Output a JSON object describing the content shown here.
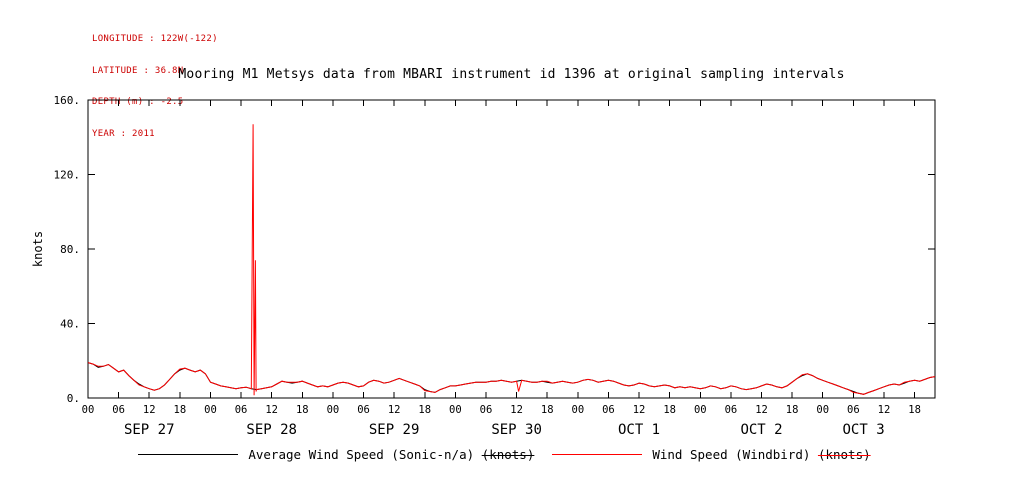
{
  "meta": {
    "lines": [
      "LONGITUDE : 122W(-122)",
      "LATITUDE : 36.8N",
      "DEPTH (m) : -2.5",
      "YEAR : 2011"
    ]
  },
  "chart_data": {
    "type": "line",
    "title": "Mooring M1 Metsys data from MBARI instrument id 1396 at original sampling intervals",
    "xlabel": "",
    "ylabel": "knots",
    "ylim": [
      0,
      160
    ],
    "xlim": [
      0,
      166
    ],
    "grid": false,
    "legend_position": "bottom",
    "yticks": {
      "values": [
        0,
        40,
        80,
        120,
        160
      ],
      "labels": [
        "0.",
        "40.",
        "80.",
        "120.",
        "160."
      ]
    },
    "xticks": {
      "step": 6,
      "labels_cycle": [
        "00",
        "06",
        "12",
        "18"
      ]
    },
    "day_labels": [
      {
        "label": "SEP 27",
        "center_hour": 12
      },
      {
        "label": "SEP 28",
        "center_hour": 36
      },
      {
        "label": "SEP 29",
        "center_hour": 60
      },
      {
        "label": "SEP 30",
        "center_hour": 84
      },
      {
        "label": "OCT 1",
        "center_hour": 108
      },
      {
        "label": "OCT 2",
        "center_hour": 132
      },
      {
        "label": "OCT 3",
        "center_hour": 152
      }
    ],
    "series": [
      {
        "name": "Average Wind Speed (Sonic-n/a)",
        "unit": "(knots)",
        "color": "#000000",
        "x_start": 0,
        "x_step": 1,
        "values": [
          19.0,
          18.2,
          16.5,
          17.0,
          18.0,
          16.0,
          14.0,
          15.0,
          12.0,
          9.5,
          7.5,
          6.0,
          5.0,
          4.2,
          5.0,
          7.0,
          10.0,
          13.0,
          15.0,
          16.0,
          15.0,
          14.0,
          15.0,
          13.0,
          8.5,
          7.5,
          6.5,
          6.0,
          5.5,
          5.0,
          5.5,
          5.8,
          5.0,
          4.5,
          5.0,
          5.5,
          6.0,
          7.5,
          9.0,
          8.5,
          8.0,
          8.5,
          9.0,
          8.0,
          7.0,
          6.0,
          6.5,
          6.0,
          7.0,
          8.0,
          8.5,
          8.0,
          7.0,
          6.0,
          6.5,
          8.5,
          9.5,
          9.0,
          8.0,
          8.5,
          9.5,
          10.5,
          9.5,
          8.5,
          7.5,
          6.5,
          4.5,
          3.5,
          3.0,
          4.5,
          5.5,
          6.5,
          6.5,
          7.0,
          7.5,
          8.0,
          8.5,
          8.5,
          8.5,
          9.0,
          9.0,
          9.5,
          9.0,
          8.5,
          9.0,
          9.5,
          9.0,
          8.5,
          8.5,
          9.0,
          8.5,
          8.0,
          8.5,
          9.0,
          8.5,
          8.0,
          8.5,
          9.5,
          10.0,
          9.5,
          8.5,
          9.0,
          9.5,
          9.0,
          8.0,
          7.0,
          6.5,
          7.0,
          8.0,
          7.5,
          6.5,
          6.0,
          6.5,
          7.0,
          6.5,
          5.5,
          6.0,
          5.5,
          6.0,
          5.5,
          5.0,
          5.5,
          6.5,
          6.0,
          5.0,
          5.5,
          6.5,
          6.0,
          5.0,
          4.5,
          5.0,
          5.5,
          6.5,
          7.5,
          7.0,
          6.0,
          5.5,
          6.5,
          8.5,
          10.5,
          12.0,
          13.0,
          12.0,
          10.5,
          9.5,
          8.5,
          7.5,
          6.5,
          5.5,
          4.5,
          3.5,
          2.5,
          2.0,
          3.0,
          4.0,
          5.0,
          6.0,
          7.0,
          7.5,
          7.0,
          8.0,
          9.0,
          9.5,
          9.0,
          10.0,
          11.0,
          11.5
        ],
        "extra_points": []
      },
      {
        "name": "Wind Speed (Windbird)",
        "unit": "(knots)",
        "color": "#ff0000",
        "x_start": 0,
        "x_step": 1,
        "values": [
          19.0,
          18.2,
          17.0,
          17.0,
          18.0,
          16.0,
          14.0,
          15.0,
          12.0,
          9.5,
          7.0,
          6.0,
          5.0,
          4.2,
          5.0,
          7.0,
          10.0,
          13.0,
          15.5,
          16.0,
          15.0,
          14.0,
          15.0,
          13.0,
          8.5,
          7.5,
          6.5,
          6.0,
          5.5,
          5.0,
          5.5,
          5.8,
          5.0,
          4.5,
          5.0,
          5.5,
          6.0,
          7.5,
          9.0,
          8.5,
          8.5,
          8.5,
          9.0,
          8.0,
          7.0,
          6.0,
          6.5,
          6.0,
          7.0,
          8.0,
          8.5,
          8.0,
          7.0,
          6.0,
          6.5,
          8.5,
          9.5,
          9.0,
          8.0,
          8.5,
          9.5,
          10.5,
          9.5,
          8.5,
          7.5,
          6.5,
          4.0,
          3.5,
          3.0,
          4.5,
          5.5,
          6.5,
          6.5,
          7.0,
          7.5,
          8.0,
          8.5,
          8.5,
          8.5,
          9.0,
          9.0,
          9.5,
          9.0,
          8.5,
          9.0,
          9.5,
          9.0,
          8.5,
          8.5,
          9.0,
          9.0,
          8.0,
          8.5,
          9.0,
          8.5,
          8.0,
          8.5,
          9.5,
          10.0,
          9.5,
          8.5,
          9.0,
          9.5,
          9.0,
          8.0,
          7.0,
          6.5,
          7.0,
          8.0,
          7.5,
          6.5,
          6.0,
          6.5,
          7.0,
          6.5,
          5.5,
          6.0,
          5.5,
          6.0,
          5.5,
          5.0,
          5.5,
          6.5,
          6.0,
          5.0,
          5.5,
          6.5,
          6.0,
          5.0,
          4.5,
          5.0,
          5.5,
          6.5,
          7.5,
          7.0,
          6.0,
          5.5,
          6.5,
          8.5,
          10.5,
          12.5,
          13.0,
          12.0,
          10.5,
          9.5,
          8.5,
          7.5,
          6.5,
          5.5,
          4.5,
          3.0,
          2.5,
          2.0,
          3.0,
          4.0,
          5.0,
          6.0,
          7.0,
          7.5,
          7.0,
          8.5,
          9.0,
          9.5,
          9.0,
          10.0,
          11.0,
          11.5
        ],
        "extra_points": [
          [
            32.35,
            147.0
          ],
          [
            32.55,
            1.5
          ],
          [
            32.8,
            74.0
          ],
          [
            32.95,
            3.5
          ],
          [
            84.4,
            3.5
          ]
        ]
      }
    ]
  }
}
